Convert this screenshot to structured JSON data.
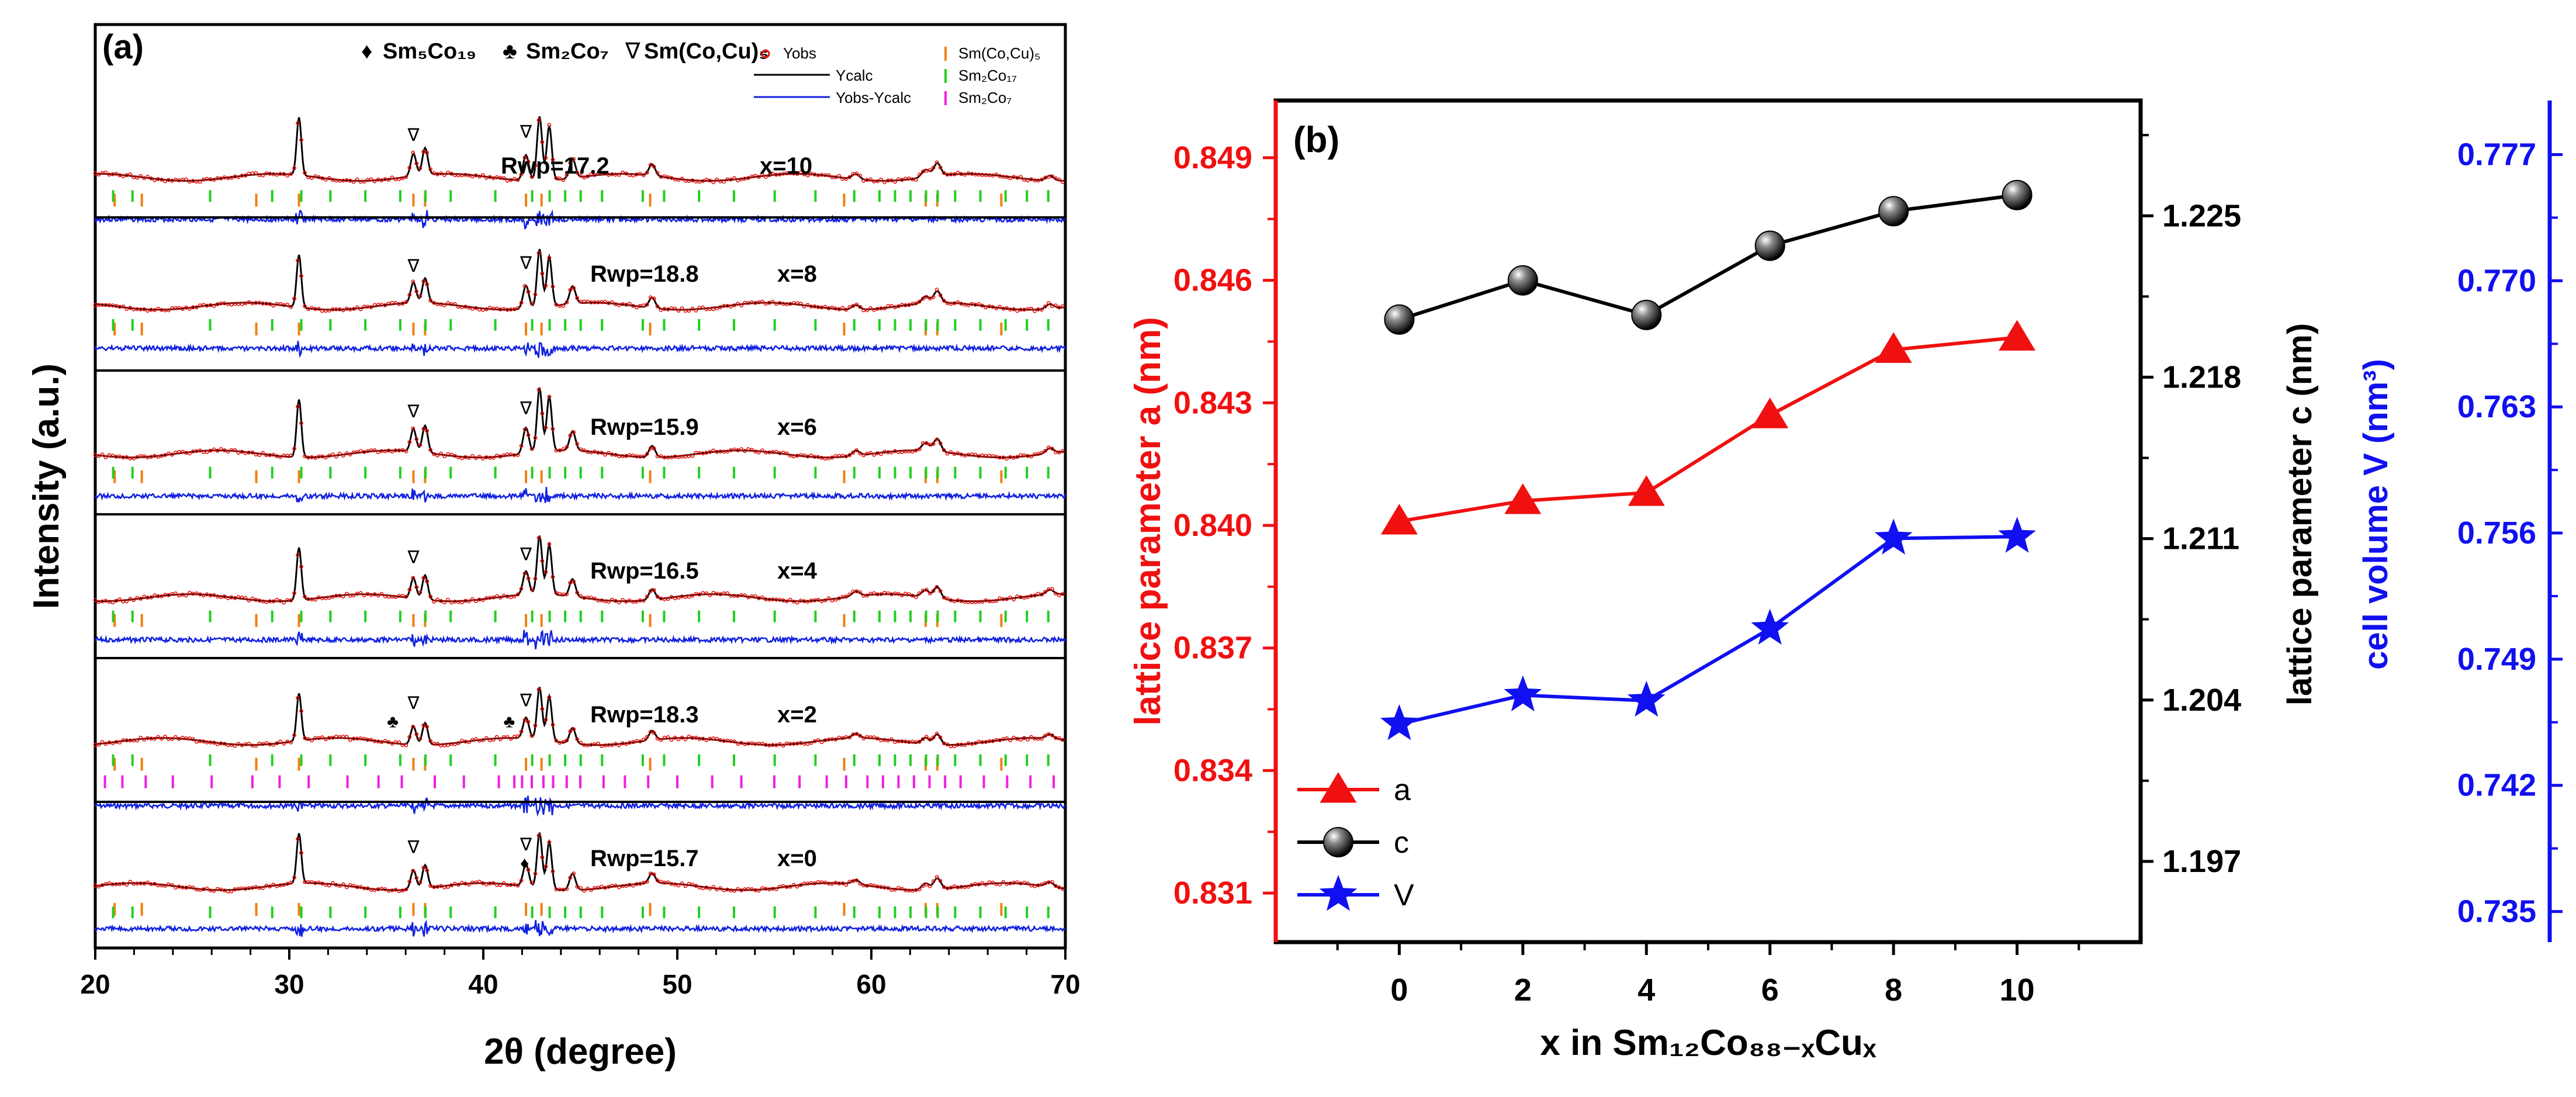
{
  "chart_data": [
    {
      "panel": "(a)",
      "type": "line",
      "xlabel": "2θ (degree)",
      "ylabel": "Intensity (a.u.)",
      "xlim": [
        20,
        70
      ],
      "xticks": [
        20,
        30,
        40,
        50,
        60,
        70
      ],
      "legend_top": [
        {
          "symbol": "♦",
          "label": "Sm₅Co₁₉"
        },
        {
          "symbol": "♣",
          "label": "Sm₂Co₇"
        },
        {
          "symbol": "∇",
          "label": "Sm(Co,Cu)₅"
        }
      ],
      "legend_box": [
        {
          "label": "Yobs",
          "color": "#e8120c",
          "marker": "open-circle"
        },
        {
          "label": "Ycalc",
          "color": "#000000",
          "marker": "line"
        },
        {
          "label": "Yobs-Ycalc",
          "color": "#1020e0",
          "marker": "line"
        },
        {
          "label": "Sm(Co,Cu)₅",
          "color": "#f08010",
          "marker": "tick"
        },
        {
          "label": "Sm₂Co₁₇",
          "color": "#20d020",
          "marker": "tick"
        },
        {
          "label": "Sm₂Co₇",
          "color": "#f020e0",
          "marker": "tick"
        }
      ],
      "series": [
        {
          "x_label": "x=10",
          "rwp": "Rwp=17.2",
          "variant": 10
        },
        {
          "x_label": "x=8",
          "rwp": "Rwp=18.8",
          "variant": 8
        },
        {
          "x_label": "x=6",
          "rwp": "Rwp=15.9",
          "variant": 6
        },
        {
          "x_label": "x=4",
          "rwp": "Rwp=16.5",
          "variant": 4
        },
        {
          "x_label": "x=2",
          "rwp": "Rwp=18.3",
          "variant": 2
        },
        {
          "x_label": "x=0",
          "rwp": "Rwp=15.7",
          "variant": 0
        }
      ],
      "peaks_main": [
        {
          "pos": 30.5,
          "h": 0.9,
          "w": 0.12
        },
        {
          "pos": 36.4,
          "h": 0.35,
          "w": 0.14
        },
        {
          "pos": 37.0,
          "h": 0.42,
          "w": 0.14
        },
        {
          "pos": 42.2,
          "h": 0.4,
          "w": 0.15
        },
        {
          "pos": 42.9,
          "h": 1.0,
          "w": 0.13
        },
        {
          "pos": 43.4,
          "h": 0.85,
          "w": 0.13
        },
        {
          "pos": 44.6,
          "h": 0.3,
          "w": 0.15
        },
        {
          "pos": 48.7,
          "h": 0.18,
          "w": 0.16
        },
        {
          "pos": 59.2,
          "h": 0.08,
          "w": 0.2
        },
        {
          "pos": 62.8,
          "h": 0.12,
          "w": 0.2
        },
        {
          "pos": 63.4,
          "h": 0.2,
          "w": 0.18
        },
        {
          "pos": 69.2,
          "h": 0.08,
          "w": 0.2
        }
      ],
      "tick_positions": {
        "SmCoCu5": [
          21.0,
          22.4,
          28.3,
          30.5,
          36.4,
          37.0,
          42.2,
          43.0,
          48.6,
          58.6,
          62.8,
          63.4,
          66.7
        ],
        "Sm2Co17": [
          20.8,
          21.8,
          25.8,
          29.0,
          30.5,
          32.0,
          33.8,
          35.6,
          36.9,
          38.2,
          40.5,
          42.4,
          43.3,
          44.1,
          44.9,
          46.0,
          48.1,
          49.2,
          51.0,
          52.8,
          54.9,
          57.0,
          59.0,
          60.3,
          61.1,
          61.9,
          62.7,
          63.3,
          64.2,
          65.5,
          66.8,
          67.9,
          69.0
        ],
        "Sm2Co7": [
          20.5,
          21.4,
          22.6,
          24.0,
          26.0,
          28.1,
          29.5,
          31.0,
          33.0,
          34.6,
          35.8,
          37.5,
          39.0,
          40.8,
          41.6,
          42.0,
          42.5,
          43.1,
          43.6,
          44.3,
          45.0,
          46.2,
          47.3,
          48.5,
          50.0,
          51.8,
          53.3,
          55.0,
          56.3,
          57.7,
          58.7,
          59.8,
          60.6,
          61.4,
          62.2,
          63.0,
          63.8,
          64.6,
          65.8,
          67.0,
          68.2,
          69.4
        ]
      }
    },
    {
      "panel": "(b)",
      "type": "line",
      "xlabel": "x in Sm₁₂Co₈₈₋ₓCuₓ",
      "x": [
        0,
        2,
        4,
        6,
        8,
        10
      ],
      "xticks": [
        0,
        2,
        4,
        6,
        8,
        10
      ],
      "xlim": [
        -2,
        12
      ],
      "axes": {
        "left": {
          "label": "lattice parameter a (nm)",
          "color": "#f01010",
          "ylim": [
            0.8298,
            0.8504
          ],
          "ticks": [
            "0.831",
            "0.834",
            "0.837",
            "0.840",
            "0.843",
            "0.846",
            "0.849"
          ]
        },
        "right1": {
          "label": "lattice parameter c (nm)",
          "color": "#000000",
          "ylim": [
            1.1935,
            1.23
          ],
          "ticks": [
            "1.197",
            "1.204",
            "1.211",
            "1.218",
            "1.225"
          ]
        },
        "right2": {
          "label": "cell volume  V (nm³)",
          "color": "#1010f0",
          "ylim": [
            0.7333,
            0.78
          ],
          "ticks": [
            "0.735",
            "0.742",
            "0.749",
            "0.756",
            "0.763",
            "0.770",
            "0.777"
          ]
        }
      },
      "series": [
        {
          "name": "a",
          "axis": "left",
          "color": "#f01010",
          "marker": "triangle",
          "values": [
            0.8401,
            0.8406,
            0.8408,
            0.8427,
            0.8443,
            0.8446
          ]
        },
        {
          "name": "c",
          "axis": "right1",
          "color": "#000000",
          "marker": "sphere",
          "values": [
            1.2205,
            1.2222,
            1.2207,
            1.2237,
            1.2252,
            1.2259
          ]
        },
        {
          "name": "V",
          "axis": "right2",
          "color": "#1010f0",
          "marker": "star",
          "values": [
            0.7454,
            0.747,
            0.7467,
            0.7507,
            0.7557,
            0.7558
          ]
        }
      ],
      "legend": [
        {
          "label": "a",
          "color": "#f01010",
          "marker": "triangle"
        },
        {
          "label": "c",
          "color": "#000000",
          "marker": "sphere"
        },
        {
          "label": "V",
          "color": "#1010f0",
          "marker": "star"
        }
      ]
    }
  ]
}
